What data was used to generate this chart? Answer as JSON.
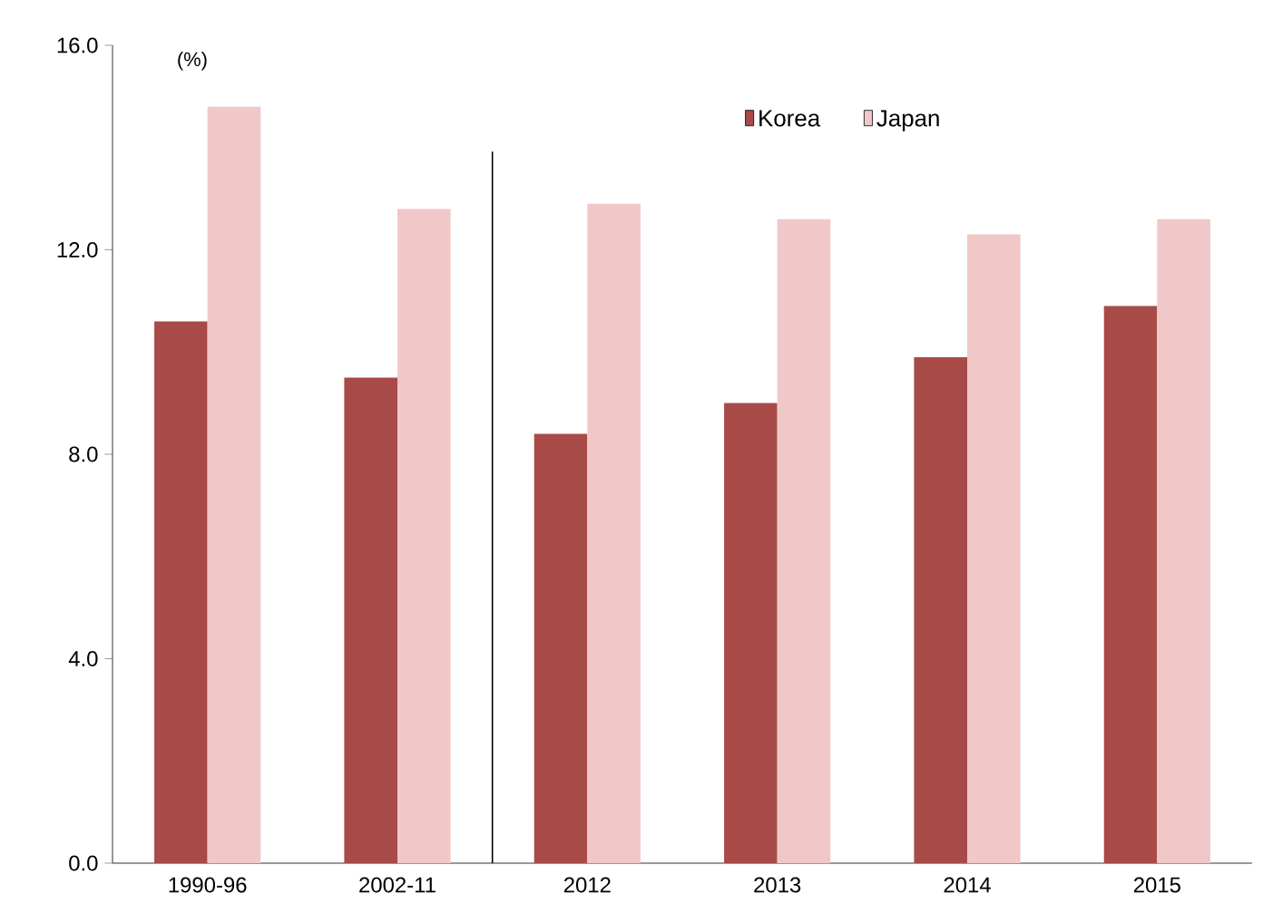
{
  "chart_data": {
    "type": "bar",
    "ylabel": "(%)",
    "categories": [
      "1990-96",
      "2002-11",
      "2012",
      "2013",
      "2014",
      "2015"
    ],
    "series": [
      {
        "name": "Korea",
        "color": "#a84a48",
        "values": [
          10.6,
          9.5,
          8.4,
          9.0,
          9.9,
          10.9
        ]
      },
      {
        "name": "Japan",
        "color": "#f0c8c8",
        "values": [
          14.8,
          12.8,
          12.9,
          12.6,
          12.3,
          12.6
        ]
      }
    ],
    "ylim": [
      0,
      16
    ],
    "yticks": [
      {
        "value": 0,
        "label": "0.0"
      },
      {
        "value": 4,
        "label": "4.0"
      },
      {
        "value": 8,
        "label": "8.0"
      },
      {
        "value": 12,
        "label": "12.0"
      },
      {
        "value": 16,
        "label": "16.0"
      }
    ],
    "grid": false,
    "legend": "top right"
  }
}
